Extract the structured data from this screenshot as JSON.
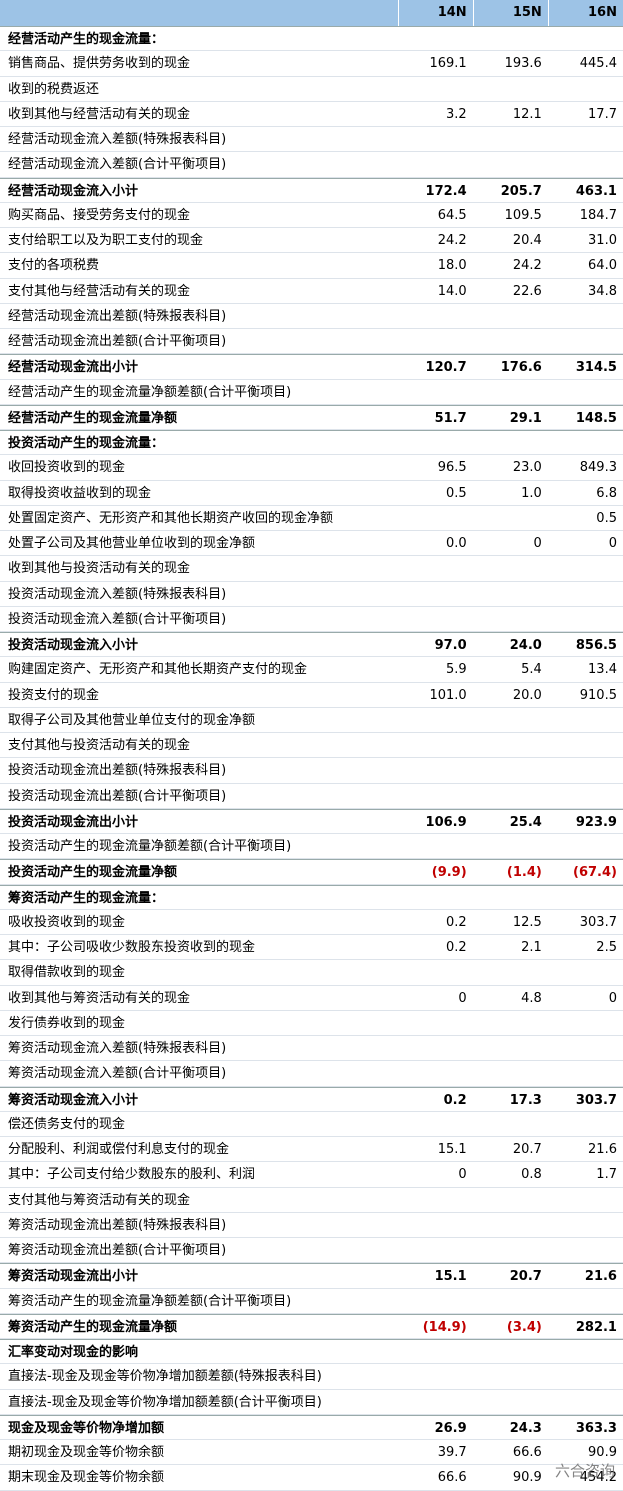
{
  "table": {
    "header": [
      "14N",
      "15N",
      "16N"
    ],
    "rows": [
      {
        "label": "经营活动产生的现金流量：",
        "bold": true
      },
      {
        "label": "销售商品、提供劳务收到的现金",
        "values": [
          "169.1",
          "193.6",
          "445.4"
        ]
      },
      {
        "label": "收到的税费返还"
      },
      {
        "label": "收到其他与经营活动有关的现金",
        "values": [
          "3.2",
          "12.1",
          "17.7"
        ]
      },
      {
        "label": "经营活动现金流入差额(特殊报表科目)"
      },
      {
        "label": "经营活动现金流入差额(合计平衡项目)"
      },
      {
        "label": "经营活动现金流入小计",
        "values": [
          "172.4",
          "205.7",
          "463.1"
        ],
        "bold": true
      },
      {
        "label": "购买商品、接受劳务支付的现金",
        "values": [
          "64.5",
          "109.5",
          "184.7"
        ]
      },
      {
        "label": "支付给职工以及为职工支付的现金",
        "values": [
          "24.2",
          "20.4",
          "31.0"
        ]
      },
      {
        "label": "支付的各项税费",
        "values": [
          "18.0",
          "24.2",
          "64.0"
        ]
      },
      {
        "label": "支付其他与经营活动有关的现金",
        "values": [
          "14.0",
          "22.6",
          "34.8"
        ]
      },
      {
        "label": "经营活动现金流出差额(特殊报表科目)"
      },
      {
        "label": "经营活动现金流出差额(合计平衡项目)"
      },
      {
        "label": "经营活动现金流出小计",
        "values": [
          "120.7",
          "176.6",
          "314.5"
        ],
        "bold": true
      },
      {
        "label": "经营活动产生的现金流量净额差额(合计平衡项目)"
      },
      {
        "label": "经营活动产生的现金流量净额",
        "values": [
          "51.7",
          "29.1",
          "148.5"
        ],
        "bold": true
      },
      {
        "label": "投资活动产生的现金流量：",
        "bold": true
      },
      {
        "label": "收回投资收到的现金",
        "values": [
          "96.5",
          "23.0",
          "849.3"
        ]
      },
      {
        "label": "取得投资收益收到的现金",
        "values": [
          "0.5",
          "1.0",
          "6.8"
        ]
      },
      {
        "label": "处置固定资产、无形资产和其他长期资产收回的现金净额",
        "values": [
          null,
          null,
          "0.5"
        ]
      },
      {
        "label": "处置子公司及其他营业单位收到的现金净额",
        "values": [
          "0.0",
          "0",
          "0"
        ]
      },
      {
        "label": "收到其他与投资活动有关的现金"
      },
      {
        "label": "投资活动现金流入差额(特殊报表科目)"
      },
      {
        "label": "投资活动现金流入差额(合计平衡项目)"
      },
      {
        "label": "投资活动现金流入小计",
        "values": [
          "97.0",
          "24.0",
          "856.5"
        ],
        "bold": true
      },
      {
        "label": "购建固定资产、无形资产和其他长期资产支付的现金",
        "values": [
          "5.9",
          "5.4",
          "13.4"
        ]
      },
      {
        "label": "投资支付的现金",
        "values": [
          "101.0",
          "20.0",
          "910.5"
        ]
      },
      {
        "label": "取得子公司及其他营业单位支付的现金净额"
      },
      {
        "label": "支付其他与投资活动有关的现金"
      },
      {
        "label": "投资活动现金流出差额(特殊报表科目)"
      },
      {
        "label": "投资活动现金流出差额(合计平衡项目)"
      },
      {
        "label": "投资活动现金流出小计",
        "values": [
          "106.9",
          "25.4",
          "923.9"
        ],
        "bold": true
      },
      {
        "label": "投资活动产生的现金流量净额差额(合计平衡项目)"
      },
      {
        "label": "投资活动产生的现金流量净额",
        "values": [
          "(9.9)",
          "(1.4)",
          "(67.4)"
        ],
        "bold": true
      },
      {
        "label": "筹资活动产生的现金流量：",
        "bold": true
      },
      {
        "label": "吸收投资收到的现金",
        "values": [
          "0.2",
          "12.5",
          "303.7"
        ]
      },
      {
        "label": "其中：子公司吸收少数股东投资收到的现金",
        "values": [
          "0.2",
          "2.1",
          "2.5"
        ]
      },
      {
        "label": "取得借款收到的现金"
      },
      {
        "label": "收到其他与筹资活动有关的现金",
        "values": [
          "0",
          "4.8",
          "0"
        ]
      },
      {
        "label": "发行债券收到的现金"
      },
      {
        "label": "筹资活动现金流入差额(特殊报表科目)"
      },
      {
        "label": "筹资活动现金流入差额(合计平衡项目)"
      },
      {
        "label": "筹资活动现金流入小计",
        "values": [
          "0.2",
          "17.3",
          "303.7"
        ],
        "bold": true
      },
      {
        "label": "偿还债务支付的现金"
      },
      {
        "label": "分配股利、利润或偿付利息支付的现金",
        "values": [
          "15.1",
          "20.7",
          "21.6"
        ]
      },
      {
        "label": "其中：子公司支付给少数股东的股利、利润",
        "values": [
          "0",
          "0.8",
          "1.7"
        ]
      },
      {
        "label": "支付其他与筹资活动有关的现金"
      },
      {
        "label": "筹资活动现金流出差额(特殊报表科目)"
      },
      {
        "label": "筹资活动现金流出差额(合计平衡项目)"
      },
      {
        "label": "筹资活动现金流出小计",
        "values": [
          "15.1",
          "20.7",
          "21.6"
        ],
        "bold": true
      },
      {
        "label": "筹资活动产生的现金流量净额差额(合计平衡项目)"
      },
      {
        "label": "筹资活动产生的现金流量净额",
        "values": [
          "(14.9)",
          "(3.4)",
          "282.1"
        ],
        "bold": true
      },
      {
        "label": "汇率变动对现金的影响",
        "bold": true
      },
      {
        "label": "直接法-现金及现金等价物净增加额差额(特殊报表科目)"
      },
      {
        "label": "直接法-现金及现金等价物净增加额差额(合计平衡项目)"
      },
      {
        "label": "现金及现金等价物净增加额",
        "values": [
          "26.9",
          "24.3",
          "363.3"
        ],
        "bold": true
      },
      {
        "label": "期初现金及现金等价物余额",
        "values": [
          "39.7",
          "66.6",
          "90.9"
        ]
      },
      {
        "label": "期末现金及现金等价物余额",
        "values": [
          "66.6",
          "90.9",
          "454.2"
        ]
      }
    ],
    "negative_color": "#c00000"
  },
  "watermark": "六合咨询"
}
